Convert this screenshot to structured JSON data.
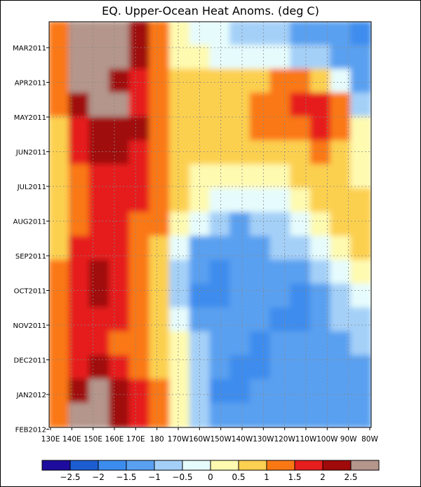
{
  "chart_data": {
    "type": "heatmap",
    "title": "EQ. Upper-Ocean Heat Anoms. (deg C)",
    "xlabel": "",
    "ylabel": "",
    "x_ticks": [
      "130E",
      "140E",
      "150E",
      "160E",
      "170E",
      "180",
      "170W",
      "160W",
      "150W",
      "140W",
      "130W",
      "120W",
      "110W",
      "100W",
      "90W",
      "80W"
    ],
    "y_ticks": [
      "MAR2011",
      "APR2011",
      "MAY2011",
      "JUN2011",
      "JUL2011",
      "AUG2011",
      "SEP2011",
      "OCT2011",
      "NOV2011",
      "DEC2011",
      "JAN2012",
      "FEB2012"
    ],
    "color_levels": [
      -3,
      -2.5,
      -2,
      -1.5,
      -1,
      -0.5,
      0,
      0.5,
      1,
      1.5,
      2,
      2.5,
      3
    ],
    "colorbar_labels": [
      "−2.5",
      "−2",
      "−1.5",
      "−1",
      "−0.5",
      "0",
      "0.5",
      "1",
      "1.5",
      "2",
      "2.5"
    ],
    "colors": [
      "#1e0c9e",
      "#1c5ed2",
      "#3c8cee",
      "#5aa0f0",
      "#a4d0f8",
      "#e6fcfc",
      "#fefab0",
      "#fcd050",
      "#fa7814",
      "#e61e1e",
      "#a00a0a",
      "#b4968c"
    ],
    "grid": true,
    "legend": "bottom",
    "source": "grid of anomaly values, deg C — rows from top (Feb 2011) to bottom (Feb 2012), columns from 130E to 80W",
    "grid_values": [
      [
        1.0,
        2.5,
        2.5,
        2.5,
        2.0,
        1.0,
        0.0,
        -0.5,
        -0.5,
        -1.0,
        -1.0,
        -1.0,
        -1.5,
        -1.5,
        -1.5,
        -2.0
      ],
      [
        1.0,
        2.5,
        2.5,
        2.5,
        2.0,
        1.0,
        0.0,
        0.0,
        -0.5,
        -0.5,
        -0.5,
        -0.5,
        -1.0,
        -1.0,
        -1.5,
        -1.5
      ],
      [
        1.0,
        2.5,
        2.5,
        2.0,
        1.5,
        1.0,
        0.5,
        0.5,
        0.5,
        0.5,
        0.5,
        1.0,
        1.0,
        0.5,
        -0.5,
        -1.5
      ],
      [
        1.0,
        2.0,
        2.5,
        2.5,
        1.5,
        1.0,
        0.5,
        0.5,
        0.5,
        0.5,
        1.0,
        1.0,
        1.5,
        1.5,
        1.0,
        -1.0
      ],
      [
        0.5,
        1.5,
        2.0,
        2.0,
        2.0,
        1.0,
        0.5,
        0.5,
        0.5,
        0.5,
        1.0,
        1.0,
        1.0,
        1.5,
        1.0,
        0.0
      ],
      [
        0.5,
        1.5,
        2.0,
        2.0,
        1.5,
        1.0,
        0.5,
        0.5,
        0.5,
        0.5,
        0.5,
        0.5,
        0.5,
        1.0,
        0.5,
        0.0
      ],
      [
        0.5,
        1.0,
        1.5,
        1.5,
        1.5,
        1.0,
        0.5,
        0.0,
        0.0,
        0.0,
        0.0,
        0.0,
        0.5,
        0.5,
        0.5,
        0.0
      ],
      [
        0.5,
        1.0,
        1.5,
        1.5,
        1.5,
        1.0,
        0.5,
        0.0,
        -0.5,
        -0.5,
        -0.5,
        -0.5,
        0.0,
        0.5,
        0.5,
        0.5
      ],
      [
        0.5,
        1.0,
        1.5,
        1.5,
        1.0,
        1.0,
        0.0,
        -0.5,
        -1.0,
        -1.5,
        -1.0,
        -1.0,
        -0.5,
        0.0,
        0.5,
        0.5
      ],
      [
        0.5,
        1.5,
        1.5,
        1.5,
        1.0,
        0.5,
        -0.5,
        -1.5,
        -1.5,
        -1.5,
        -1.5,
        -1.0,
        -1.0,
        -0.5,
        0.0,
        0.5
      ],
      [
        1.0,
        1.5,
        2.0,
        1.5,
        1.0,
        0.5,
        -1.0,
        -1.5,
        -2.0,
        -1.5,
        -1.5,
        -1.5,
        -1.5,
        -1.0,
        -0.5,
        0.0
      ],
      [
        1.0,
        1.5,
        2.0,
        1.5,
        1.0,
        0.5,
        -1.0,
        -2.0,
        -2.0,
        -1.5,
        -1.5,
        -1.5,
        -2.0,
        -1.5,
        -1.0,
        -0.5
      ],
      [
        1.0,
        1.5,
        1.5,
        1.5,
        1.0,
        0.5,
        -0.5,
        -1.5,
        -1.5,
        -1.5,
        -1.5,
        -2.0,
        -2.0,
        -1.5,
        -1.0,
        -1.0
      ],
      [
        1.0,
        1.5,
        1.5,
        1.0,
        1.0,
        0.5,
        0.0,
        -1.0,
        -1.5,
        -1.5,
        -2.0,
        -1.5,
        -1.5,
        -1.5,
        -1.5,
        -1.0
      ],
      [
        1.0,
        1.5,
        2.0,
        1.5,
        1.0,
        0.5,
        0.0,
        -1.0,
        -1.5,
        -2.0,
        -2.0,
        -1.5,
        -1.5,
        -1.5,
        -1.5,
        -1.5
      ],
      [
        1.0,
        2.0,
        2.5,
        2.0,
        1.5,
        1.0,
        0.0,
        -1.0,
        -2.0,
        -2.0,
        -1.5,
        -1.5,
        -1.5,
        -1.5,
        -1.5,
        -1.5
      ],
      [
        1.0,
        2.5,
        2.5,
        2.0,
        1.5,
        1.0,
        0.0,
        -1.0,
        -1.5,
        -1.5,
        -1.5,
        -1.5,
        -1.5,
        -1.5,
        -1.5,
        -1.5
      ]
    ]
  }
}
